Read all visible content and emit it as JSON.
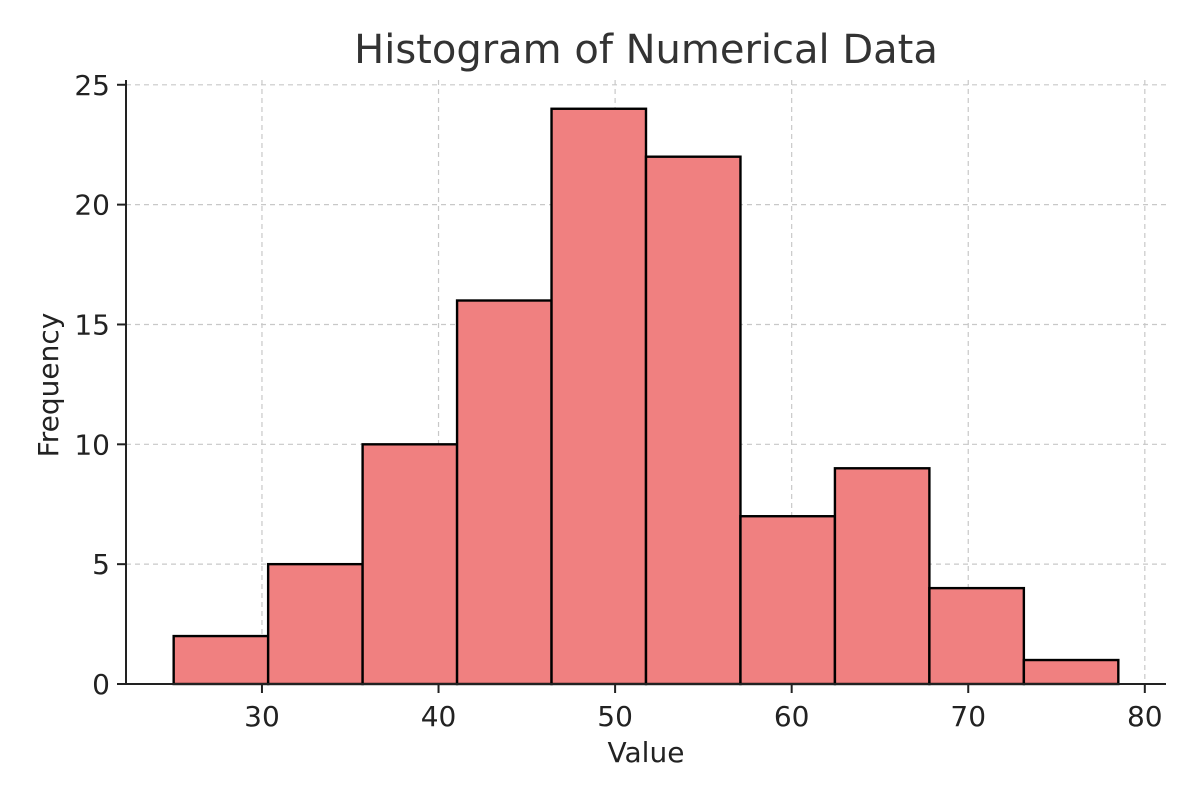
{
  "chart_data": {
    "type": "bar",
    "title": "Histogram of Numerical Data",
    "xlabel": "Value",
    "ylabel": "Frequency",
    "bin_edges": [
      25.0,
      30.35,
      35.7,
      41.05,
      46.4,
      51.75,
      57.1,
      62.45,
      67.8,
      73.15,
      78.5
    ],
    "values": [
      2,
      5,
      10,
      16,
      24,
      22,
      7,
      9,
      4,
      1
    ],
    "xlim": [
      22.3,
      81.2
    ],
    "ylim": [
      0,
      25.2
    ],
    "xticks": [
      30,
      40,
      50,
      60,
      70,
      80
    ],
    "yticks": [
      0,
      5,
      10,
      15,
      20,
      25
    ],
    "grid": true,
    "colors": {
      "bar_fill": "#f08080",
      "bar_edge": "#000000"
    }
  }
}
